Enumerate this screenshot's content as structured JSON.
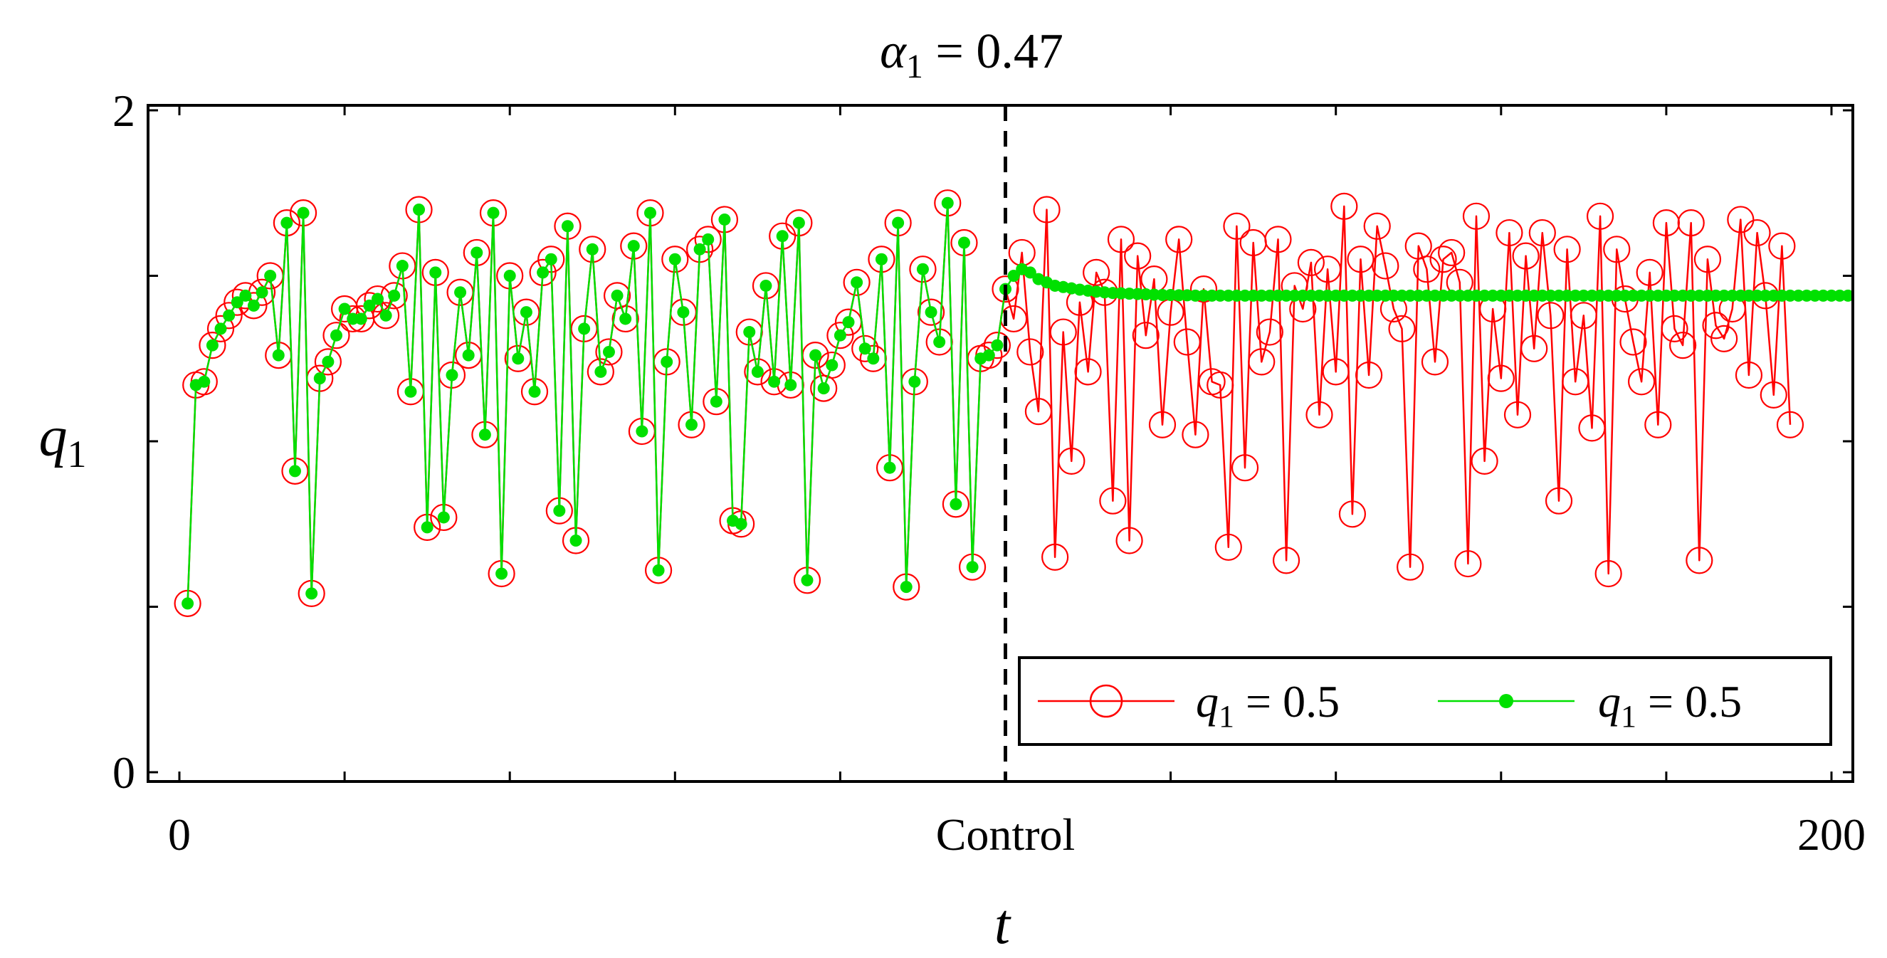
{
  "chart_data": {
    "type": "line",
    "title": {
      "symbol": "α",
      "subscript": "1",
      "text": " = 0.47"
    },
    "xlabel": "t",
    "ylabel": {
      "symbol": "q",
      "subscript": "1"
    },
    "xlim": [
      0,
      200
    ],
    "ylim": [
      0,
      2
    ],
    "x_ticks": [
      0,
      20,
      40,
      60,
      80,
      100,
      120,
      140,
      160,
      180,
      200
    ],
    "x_tick_labels": [
      {
        "value": 0,
        "label": "0"
      },
      {
        "value": 100,
        "label": "Control"
      },
      {
        "value": 200,
        "label": "200"
      }
    ],
    "y_ticks": [
      0,
      0.5,
      1.0,
      1.5,
      2.0
    ],
    "y_tick_labels": [
      {
        "value": 0,
        "label": "0"
      },
      {
        "value": 2,
        "label": "2"
      }
    ],
    "control_line_x": 100,
    "legend_position": "bottom-right",
    "series": [
      {
        "name": "q1 = 0.5",
        "legend_symbol": "q",
        "legend_subscript": "1",
        "legend_value": " = 0.5",
        "marker": "open-circle",
        "color": "#ff0000",
        "x_start": 1,
        "values": [
          0.51,
          1.17,
          1.18,
          1.29,
          1.34,
          1.38,
          1.42,
          1.44,
          1.41,
          1.45,
          1.5,
          1.26,
          1.66,
          0.91,
          1.69,
          0.54,
          1.19,
          1.24,
          1.32,
          1.4,
          1.37,
          1.37,
          1.41,
          1.43,
          1.38,
          1.44,
          1.53,
          1.15,
          1.7,
          0.74,
          1.51,
          0.77,
          1.2,
          1.45,
          1.26,
          1.57,
          1.02,
          1.69,
          0.6,
          1.5,
          1.25,
          1.39,
          1.15,
          1.51,
          1.55,
          0.79,
          1.65,
          0.7,
          1.34,
          1.58,
          1.21,
          1.27,
          1.44,
          1.37,
          1.59,
          1.03,
          1.69,
          0.61,
          1.24,
          1.55,
          1.39,
          1.05,
          1.58,
          1.61,
          1.12,
          1.67,
          0.76,
          0.75,
          1.33,
          1.21,
          1.47,
          1.18,
          1.62,
          1.17,
          1.66,
          0.58,
          1.26,
          1.16,
          1.23,
          1.32,
          1.36,
          1.48,
          1.28,
          1.25,
          1.55,
          0.92,
          1.66,
          0.56,
          1.18,
          1.52,
          1.39,
          1.3,
          1.72,
          0.81,
          1.6,
          0.62,
          1.25,
          1.26,
          1.29,
          1.46,
          1.37,
          1.57,
          1.27,
          1.09,
          1.7,
          0.65,
          1.33,
          0.94,
          1.42,
          1.21,
          1.51,
          1.45,
          0.82,
          1.61,
          0.7,
          1.56,
          1.32,
          1.49,
          1.05,
          1.39,
          1.61,
          1.3,
          1.02,
          1.46,
          1.18,
          1.17,
          0.68,
          1.65,
          0.92,
          1.6,
          1.24,
          1.33,
          1.61,
          0.64,
          1.47,
          1.4,
          1.54,
          1.08,
          1.52,
          1.21,
          1.71,
          0.78,
          1.55,
          1.2,
          1.65,
          1.53,
          1.4,
          1.34,
          0.62,
          1.59,
          1.52,
          1.24,
          1.55,
          1.57,
          1.48,
          0.63,
          1.68,
          0.94,
          1.4,
          1.19,
          1.63,
          1.08,
          1.56,
          1.28,
          1.63,
          1.38,
          0.82,
          1.58,
          1.18,
          1.38,
          1.04,
          1.68,
          0.6,
          1.58,
          1.43,
          1.3,
          1.18,
          1.51,
          1.05,
          1.66,
          1.34,
          1.29,
          1.66,
          0.64,
          1.55,
          1.35,
          1.31,
          1.4,
          1.67,
          1.2,
          1.63,
          1.44,
          1.14,
          1.59,
          1.05
        ]
      },
      {
        "name": "q1 = 0.5",
        "legend_symbol": "q",
        "legend_subscript": "1",
        "legend_value": " = 0.5",
        "marker": "filled-dot",
        "color": "#00e000",
        "x_start": 1,
        "values": [
          0.51,
          1.17,
          1.18,
          1.29,
          1.34,
          1.38,
          1.42,
          1.44,
          1.41,
          1.45,
          1.5,
          1.26,
          1.66,
          0.91,
          1.69,
          0.54,
          1.19,
          1.24,
          1.32,
          1.4,
          1.37,
          1.37,
          1.41,
          1.43,
          1.38,
          1.44,
          1.53,
          1.15,
          1.7,
          0.74,
          1.51,
          0.77,
          1.2,
          1.45,
          1.26,
          1.57,
          1.02,
          1.69,
          0.6,
          1.5,
          1.25,
          1.39,
          1.15,
          1.51,
          1.55,
          0.79,
          1.65,
          0.7,
          1.34,
          1.58,
          1.21,
          1.27,
          1.44,
          1.37,
          1.59,
          1.03,
          1.69,
          0.61,
          1.24,
          1.55,
          1.39,
          1.05,
          1.58,
          1.61,
          1.12,
          1.67,
          0.76,
          0.75,
          1.33,
          1.21,
          1.47,
          1.18,
          1.62,
          1.17,
          1.66,
          0.58,
          1.26,
          1.16,
          1.23,
          1.32,
          1.36,
          1.48,
          1.28,
          1.25,
          1.55,
          0.92,
          1.66,
          0.56,
          1.18,
          1.52,
          1.39,
          1.3,
          1.72,
          0.81,
          1.6,
          0.62,
          1.25,
          1.26,
          1.29,
          1.46,
          1.5,
          1.52,
          1.51,
          1.49,
          1.48,
          1.47,
          1.466,
          1.462,
          1.458,
          1.455,
          1.452,
          1.45,
          1.448,
          1.447,
          1.446,
          1.445,
          1.444,
          1.443,
          1.442,
          1.442,
          1.441,
          1.441,
          1.44,
          1.44,
          1.44,
          1.44,
          1.44,
          1.44,
          1.44,
          1.44,
          1.44,
          1.44,
          1.44,
          1.44,
          1.44,
          1.44,
          1.44,
          1.44,
          1.44,
          1.44,
          1.44,
          1.44,
          1.44,
          1.44,
          1.44,
          1.44,
          1.44,
          1.44,
          1.44,
          1.44,
          1.44,
          1.44,
          1.44,
          1.44,
          1.44,
          1.44,
          1.44,
          1.44,
          1.44,
          1.44,
          1.44,
          1.44,
          1.44,
          1.44,
          1.44,
          1.44,
          1.44,
          1.44,
          1.44,
          1.44,
          1.44,
          1.44,
          1.44,
          1.44,
          1.44,
          1.44,
          1.44,
          1.44,
          1.44,
          1.44,
          1.44,
          1.44,
          1.44,
          1.44,
          1.44,
          1.44,
          1.44,
          1.44,
          1.44,
          1.44,
          1.44,
          1.44,
          1.44,
          1.44,
          1.44,
          1.44,
          1.44,
          1.44,
          1.44,
          1.44,
          1.44,
          1.44
        ]
      }
    ]
  }
}
